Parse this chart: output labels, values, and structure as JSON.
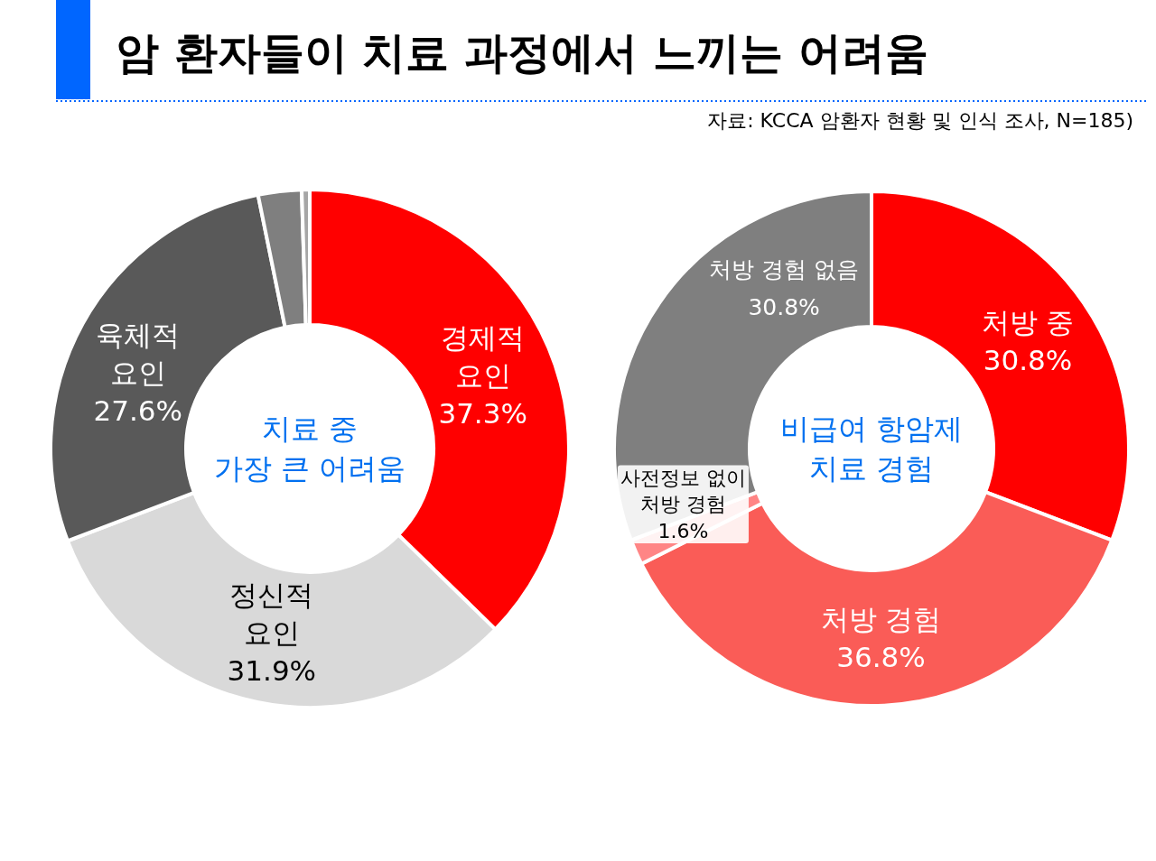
{
  "chart_data": [
    {
      "type": "donut",
      "title": "암 환자들이 치료 과정에서 느끼는 어려움",
      "annotations": [
        "자료: KCCA 암환자 현황 및 인식 조사, N=185)",
        "치료 중\n가장 큰 어려움"
      ],
      "categories": [
        "경제적\n요인",
        "정신적\n요인",
        "육체적\n요인",
        null,
        null
      ],
      "values": [
        37.3,
        31.9,
        27.6,
        2.7,
        0.5
      ],
      "colors": [
        "#ff0000",
        "#d9d9d9",
        "#595959",
        "#7f7f7f",
        "#a6a6a6"
      ],
      "value_labels": [
        "37.3%",
        "31.9%",
        "27.6%",
        null,
        null
      ]
    },
    {
      "type": "donut",
      "annotations": [
        "비급여 항암제\n치료 경험"
      ],
      "categories": [
        "처방 중",
        "처방 경험",
        "사전정보 없이\n처방 경험",
        "처방 경험 없음"
      ],
      "values": [
        30.8,
        36.8,
        1.6,
        30.8
      ],
      "colors": [
        "#ff0000",
        "#fa5c57",
        "#ff8585",
        "#7f7f7f"
      ],
      "value_labels": [
        "30.8%",
        "36.8%",
        "1.6%",
        "30.8%"
      ]
    }
  ]
}
